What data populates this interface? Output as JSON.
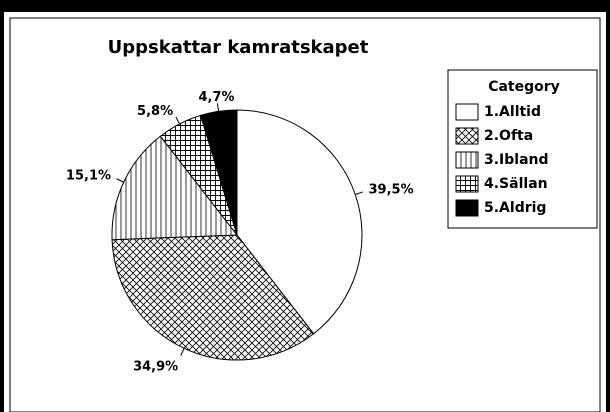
{
  "chart_data": {
    "type": "pie",
    "title": "Uppskattar kamratskapet",
    "legend_title": "Category",
    "categories": [
      "1.Alltid",
      "2.Ofta",
      "3.Ibland",
      "4.Sällan",
      "5.Aldrig"
    ],
    "values": [
      39.5,
      34.9,
      15.1,
      5.8,
      4.7
    ],
    "value_labels": [
      "39,5%",
      "34,9%",
      "15,1%",
      "5,8%",
      "4,7%"
    ],
    "patterns": [
      "none",
      "diagonal-cross",
      "vertical",
      "grid",
      "solid"
    ],
    "legend": "right"
  }
}
